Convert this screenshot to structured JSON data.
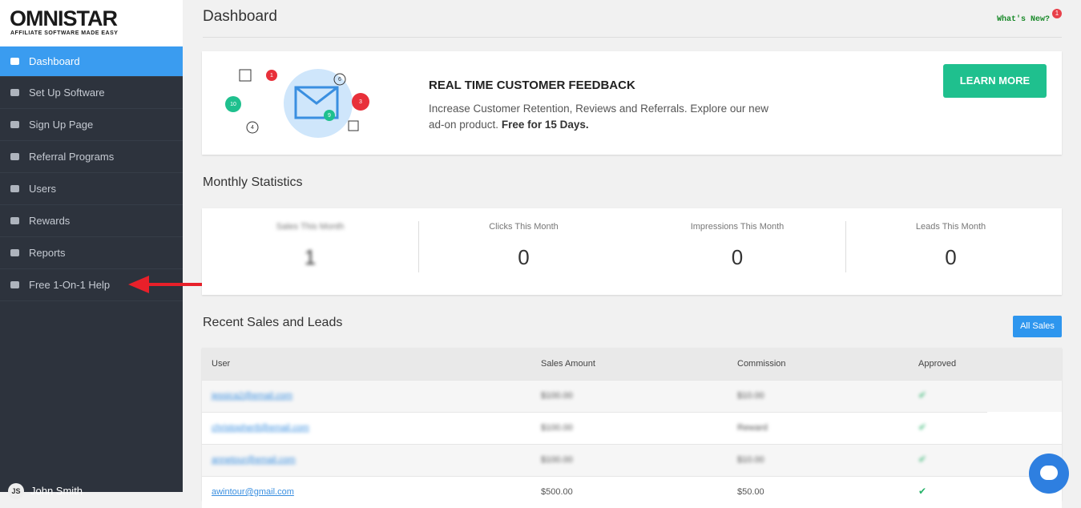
{
  "sidebar": {
    "logo": {
      "title": "OMNISTAR",
      "tagline": "AFFILIATE SOFTWARE MADE EASY"
    },
    "nav": [
      "Dashboard",
      "Set Up Software",
      "Sign Up Page",
      "Referral Programs",
      "Users",
      "Rewards",
      "Reports",
      "Free 1-On-1 Help"
    ],
    "user": {
      "initials": "JS",
      "name": "John Smith"
    }
  },
  "header": {
    "title": "Dashboard",
    "whats_new": "What's New?",
    "badge": "1"
  },
  "banner": {
    "badges": [
      "1",
      "3",
      "10",
      "9",
      "6",
      "4"
    ],
    "heading": "REAL TIME CUSTOMER FEEDBACK",
    "text": "Increase Customer Retention, Reviews and Referrals. Explore our new",
    "text2": "ad-on product.",
    "emphasis": "Free for 15 Days.",
    "button": "LEARN MORE"
  },
  "stats": {
    "title": "Monthly Statistics",
    "items": [
      {
        "label": "Sales This Month",
        "value": "1"
      },
      {
        "label": "Clicks This Month",
        "value": "0"
      },
      {
        "label": "Impressions This Month",
        "value": "0"
      },
      {
        "label": "Leads This Month",
        "value": "0"
      }
    ]
  },
  "recent": {
    "title": "Recent Sales and Leads",
    "button": "All Sales",
    "table": {
      "columns": [
        "User",
        "Sales Amount",
        "Commission",
        "Approved"
      ],
      "rows": [
        [
          "jessica2@email.com",
          "$100.00",
          "$10.00"
        ],
        [
          "christopher8@email.com",
          "$100.00",
          "Reward"
        ],
        [
          "annetour@email.com",
          "$100.00",
          "$10.00"
        ],
        [
          "awintour@gmail.com",
          "$500.00",
          "$50.00"
        ]
      ]
    }
  }
}
